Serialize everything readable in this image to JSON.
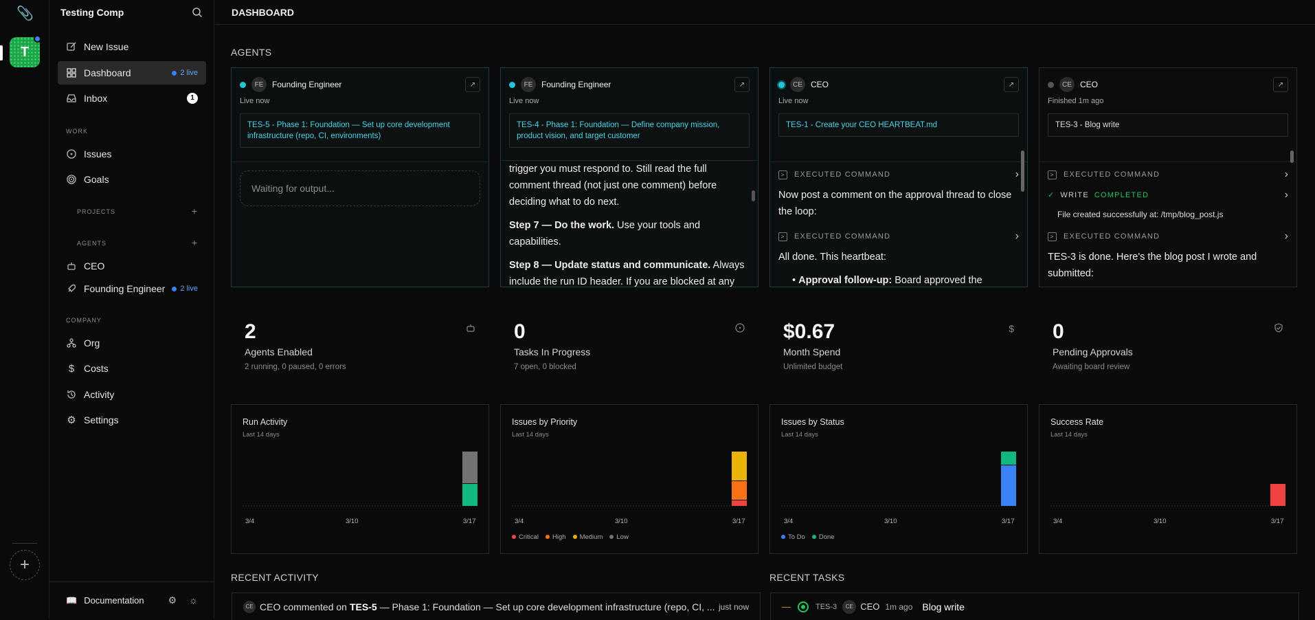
{
  "sidebar": {
    "company_name": "Testing Comp",
    "workspace_initial": "T",
    "new_issue": "New Issue",
    "dashboard": "Dashboard",
    "dashboard_live": "2 live",
    "inbox": "Inbox",
    "inbox_badge": "1",
    "work_label": "WORK",
    "issues": "Issues",
    "goals": "Goals",
    "projects_label": "PROJECTS",
    "agents_label": "AGENTS",
    "agent_ceo": "CEO",
    "agent_fe": "Founding Engineer",
    "agent_fe_live": "2 live",
    "company_label": "COMPANY",
    "org": "Org",
    "costs": "Costs",
    "activity": "Activity",
    "settings": "Settings",
    "documentation": "Documentation"
  },
  "header": {
    "title": "DASHBOARD"
  },
  "agents_section": {
    "title": "AGENTS"
  },
  "agent_cards": [
    {
      "initials": "FE",
      "name": "Founding Engineer",
      "status": "Live now",
      "task": "TES-5 - Phase 1: Foundation — Set up core development infrastructure (repo, CI, environments)",
      "waiting": "Waiting for output..."
    },
    {
      "initials": "FE",
      "name": "Founding Engineer",
      "status": "Live now",
      "task": "TES-4 - Phase 1: Foundation — Define company mission, product vision, and target customer",
      "p1": "trigger you must respond to. Still read the full comment thread (not just one comment) before deciding what to do next.",
      "p2_bold": "Step 7 — Do the work.",
      "p2": " Use your tools and capabilities.",
      "p3_bold": "Step 8 — Update status and communicate.",
      "p3": " Always include the run ID header. If you are blocked at any"
    },
    {
      "initials": "CE",
      "name": "CEO",
      "status": "Live now",
      "task": "TES-1 - Create your CEO HEARTBEAT.md",
      "exec1": "EXECUTED COMMAND",
      "p1": "Now post a comment on the approval thread to close the loop:",
      "exec2": "EXECUTED COMMAND",
      "p2": "All done. This heartbeat:",
      "li_bold": "Approval follow-up:",
      "li": " Board approved the"
    },
    {
      "initials": "CE",
      "name": "CEO",
      "status": "Finished 1m ago",
      "task": "TES-3 - Blog write",
      "exec1": "EXECUTED COMMAND",
      "write": "WRITE",
      "write_status": "COMPLETED",
      "write_file": "File created successfully at: /tmp/blog_post.js",
      "exec2": "EXECUTED COMMAND",
      "p1": "TES-3 is done. Here's the blog post I wrote and submitted:"
    }
  ],
  "metrics": [
    {
      "value": "2",
      "label": "Agents Enabled",
      "desc": "2 running, 0 paused, 0 errors",
      "icon": "bot-icon"
    },
    {
      "value": "0",
      "label": "Tasks In Progress",
      "desc": "7 open, 0 blocked",
      "icon": "circle-dot-icon"
    },
    {
      "value": "$0.67",
      "label": "Month Spend",
      "desc": "Unlimited budget",
      "icon": "dollar-icon"
    },
    {
      "value": "0",
      "label": "Pending Approvals",
      "desc": "Awaiting board review",
      "icon": "shield-icon"
    }
  ],
  "chart_data": [
    {
      "type": "bar",
      "title": "Run Activity",
      "subtitle": "Last 14 days",
      "x_ticks": [
        "3/4",
        "3/10",
        "3/17"
      ],
      "series": [
        {
          "values_last_day": 1,
          "color": "#10b981"
        },
        {
          "values_last_day": 1,
          "color": "#737373"
        }
      ],
      "stacked": true
    },
    {
      "type": "bar",
      "title": "Issues by Priority",
      "subtitle": "Last 14 days",
      "x_ticks": [
        "3/4",
        "3/10",
        "3/17"
      ],
      "series": [
        {
          "name": "Critical",
          "value_last_day": 0.3,
          "color": "#ef4444"
        },
        {
          "name": "High",
          "value_last_day": 1,
          "color": "#f97316"
        },
        {
          "name": "Medium",
          "value_last_day": 1.5,
          "color": "#eab308"
        },
        {
          "name": "Low",
          "value_last_day": 0,
          "color": "#737373"
        }
      ],
      "stacked": true
    },
    {
      "type": "bar",
      "title": "Issues by Status",
      "subtitle": "Last 14 days",
      "x_ticks": [
        "3/4",
        "3/10",
        "3/17"
      ],
      "series": [
        {
          "name": "To Do",
          "value_last_day": 6,
          "color": "#3b82f6"
        },
        {
          "name": "Done",
          "value_last_day": 1.5,
          "color": "#10b981"
        }
      ],
      "stacked": true
    },
    {
      "type": "bar",
      "title": "Success Rate",
      "subtitle": "Last 14 days",
      "x_ticks": [
        "3/4",
        "3/10",
        "3/17"
      ],
      "series": [
        {
          "value_last_day": 0.4,
          "color": "#ef4444"
        }
      ],
      "stacked": false
    }
  ],
  "recent_activity": {
    "title": "RECENT ACTIVITY",
    "initials": "CE",
    "actor": "CEO",
    "verb": "commented on",
    "issue": "TES-5",
    "text": "— Phase 1: Foundation — Set up core development infrastructure (repo, CI, ...",
    "time": "just now"
  },
  "recent_tasks": {
    "title": "RECENT TASKS",
    "id": "TES-3",
    "initials": "CE",
    "agent": "CEO",
    "ago": "1m ago",
    "task": "Blog write"
  },
  "colors": {
    "accent": "#22c5d9",
    "live": "#3b82f6",
    "done": "#10b981",
    "critical": "#ef4444"
  }
}
